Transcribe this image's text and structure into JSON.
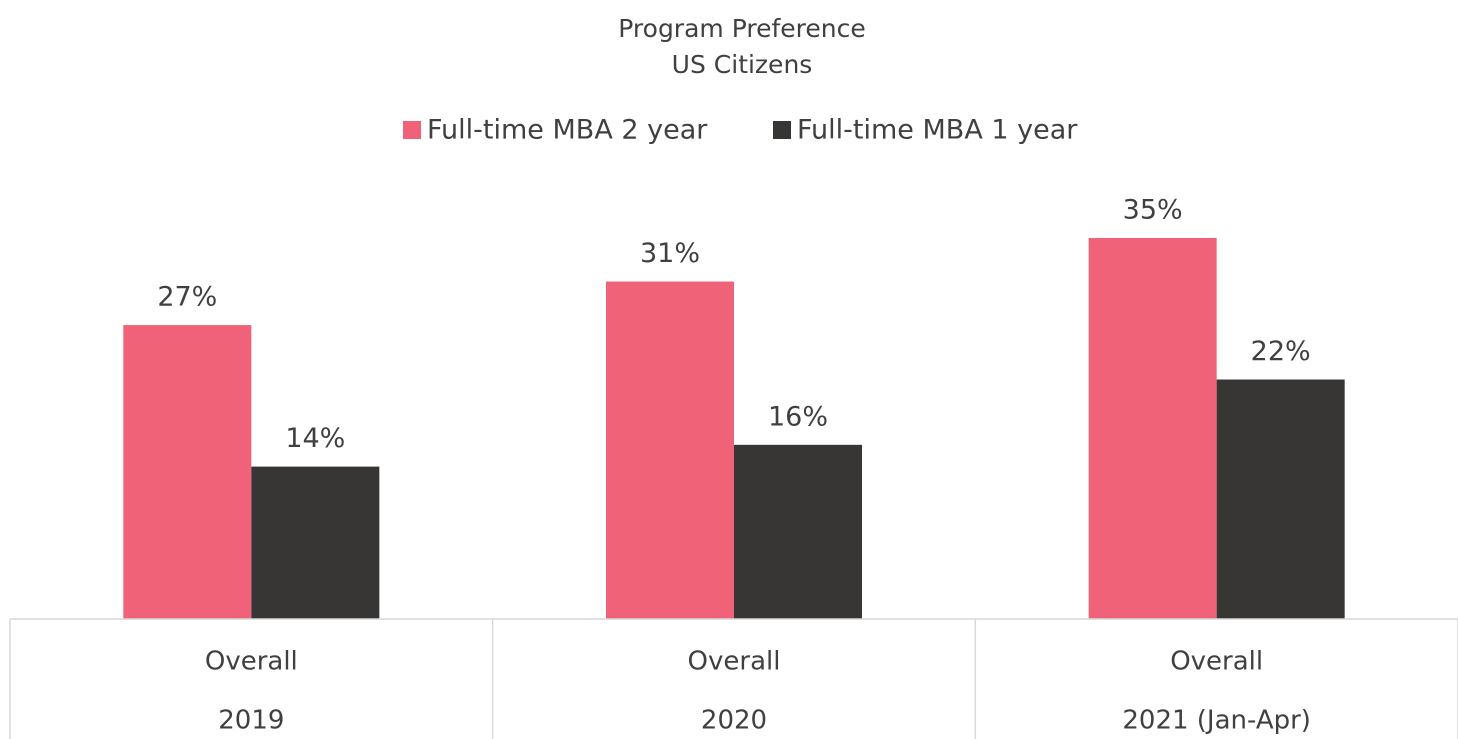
{
  "chart_data": {
    "type": "bar",
    "title": "Program Preference",
    "subtitle": "US Citizens",
    "category_groups": [
      "Overall",
      "Overall",
      "Overall"
    ],
    "categories": [
      "2019",
      "2020",
      "2021 (Jan-Apr)"
    ],
    "series": [
      {
        "name": "Full-time MBA 2 year",
        "color": "#f06277",
        "values": [
          27,
          31,
          35
        ],
        "value_labels": [
          "27%",
          "31%",
          "35%"
        ]
      },
      {
        "name": "Full-time MBA 1 year",
        "color": "#383634",
        "values": [
          14,
          16,
          22
        ],
        "value_labels": [
          "14%",
          "16%",
          "22%"
        ]
      }
    ],
    "legend": "top"
  }
}
